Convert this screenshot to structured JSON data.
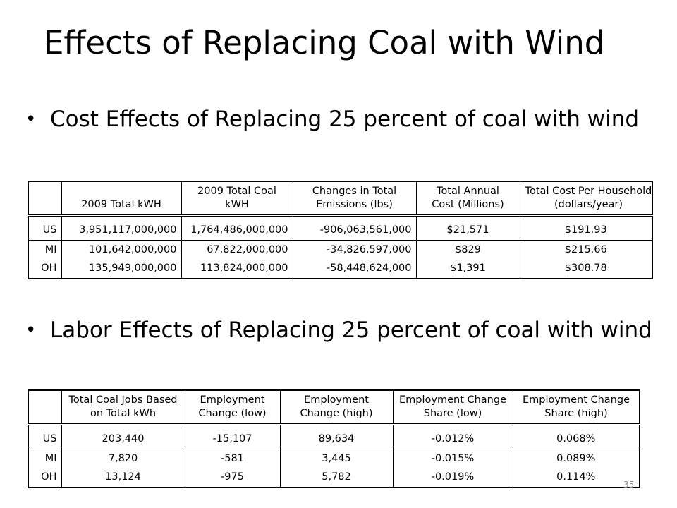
{
  "slide": {
    "title": "Effects of Replacing Coal with Wind",
    "page_number": "35"
  },
  "bullets": [
    {
      "text": "Cost Effects of Replacing 25 percent of coal with wind"
    },
    {
      "text": "Labor Effects of Replacing 25 percent of coal with wind"
    }
  ],
  "cost_table": {
    "headers": [
      "2009 Total kWH",
      "2009 Total Coal kWH",
      "Changes in Total Emissions (lbs)",
      "Total Annual Cost (Millions)",
      "Total Cost Per Household (dollars/year)"
    ],
    "rows": [
      {
        "label": "US",
        "cells": [
          "3,951,117,000,000",
          "1,764,486,000,000",
          "-906,063,561,000",
          "$21,571",
          "$191.93"
        ]
      },
      {
        "label": "MI",
        "cells": [
          "101,642,000,000",
          "67,822,000,000",
          "-34,826,597,000",
          "$829",
          "$215.66"
        ]
      },
      {
        "label": "OH",
        "cells": [
          "135,949,000,000",
          "113,824,000,000",
          "-58,448,624,000",
          "$1,391",
          "$308.78"
        ]
      }
    ]
  },
  "labor_table": {
    "headers": [
      "Total Coal Jobs Based on Total kWh",
      "Employment Change (low)",
      "Employment Change (high)",
      "Employment Change Share (low)",
      "Employment Change Share (high)"
    ],
    "rows": [
      {
        "label": "US",
        "cells": [
          "203,440",
          "-15,107",
          "89,634",
          "-0.012%",
          "0.068%"
        ]
      },
      {
        "label": "MI",
        "cells": [
          "7,820",
          "-581",
          "3,445",
          "-0.015%",
          "0.089%"
        ]
      },
      {
        "label": "OH",
        "cells": [
          "13,124",
          "-975",
          "5,782",
          "-0.019%",
          "0.114%"
        ]
      }
    ]
  }
}
